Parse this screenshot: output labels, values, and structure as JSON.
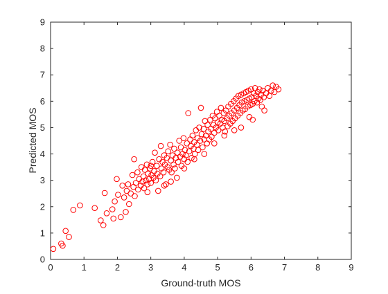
{
  "chart_data": {
    "type": "scatter",
    "xlabel": "Ground-truth MOS",
    "ylabel": "Predicted MOS",
    "xlim": [
      0,
      9
    ],
    "ylim": [
      0,
      9
    ],
    "x_ticks": [
      "0",
      "1",
      "2",
      "3",
      "4",
      "5",
      "6",
      "7",
      "8",
      "9"
    ],
    "y_ticks": [
      "0",
      "1",
      "2",
      "3",
      "4",
      "5",
      "6",
      "7",
      "8",
      "9"
    ],
    "grid": false,
    "box": true,
    "marker": "circle",
    "marker_color": "#ff0000",
    "series": [
      {
        "points": [
          [
            0.08,
            0.4
          ],
          [
            0.32,
            0.6
          ],
          [
            0.36,
            0.52
          ],
          [
            0.45,
            1.08
          ],
          [
            0.55,
            0.85
          ],
          [
            0.68,
            1.88
          ],
          [
            0.88,
            2.05
          ],
          [
            1.32,
            1.95
          ],
          [
            1.5,
            1.48
          ],
          [
            1.58,
            1.3
          ],
          [
            1.62,
            2.52
          ],
          [
            1.68,
            1.75
          ],
          [
            1.85,
            1.9
          ],
          [
            1.88,
            1.55
          ],
          [
            1.92,
            2.2
          ],
          [
            1.98,
            3.05
          ],
          [
            2.02,
            2.45
          ],
          [
            2.1,
            1.6
          ],
          [
            2.15,
            2.8
          ],
          [
            2.2,
            2.35
          ],
          [
            2.25,
            1.8
          ],
          [
            2.28,
            2.6
          ],
          [
            2.32,
            2.85
          ],
          [
            2.35,
            2.1
          ],
          [
            2.4,
            2.5
          ],
          [
            2.45,
            3.2
          ],
          [
            2.48,
            2.75
          ],
          [
            2.5,
            3.8
          ],
          [
            2.52,
            2.4
          ],
          [
            2.55,
            2.9
          ],
          [
            2.6,
            3.3
          ],
          [
            2.62,
            2.65
          ],
          [
            2.65,
            3.05
          ],
          [
            2.7,
            2.8
          ],
          [
            2.72,
            3.5
          ],
          [
            2.75,
            2.95
          ],
          [
            2.78,
            3.15
          ],
          [
            2.8,
            2.7
          ],
          [
            2.82,
            3.4
          ],
          [
            2.85,
            3.0
          ],
          [
            2.88,
            3.6
          ],
          [
            2.9,
            2.85
          ],
          [
            2.92,
            3.25
          ],
          [
            2.95,
            3.05
          ],
          [
            2.98,
            3.45
          ],
          [
            3.0,
            2.9
          ],
          [
            3.02,
            3.2
          ],
          [
            3.05,
            3.7
          ],
          [
            3.08,
            3.1
          ],
          [
            3.1,
            3.35
          ],
          [
            3.12,
            4.05
          ],
          [
            3.15,
            3.0
          ],
          [
            3.18,
            3.55
          ],
          [
            3.2,
            3.25
          ],
          [
            3.22,
            2.6
          ],
          [
            3.25,
            3.8
          ],
          [
            3.28,
            3.15
          ],
          [
            3.3,
            4.3
          ],
          [
            3.32,
            3.45
          ],
          [
            3.35,
            3.7
          ],
          [
            3.38,
            3.3
          ],
          [
            3.4,
            3.95
          ],
          [
            3.42,
            3.6
          ],
          [
            3.45,
            2.85
          ],
          [
            3.48,
            3.85
          ],
          [
            3.5,
            3.5
          ],
          [
            3.52,
            4.1
          ],
          [
            3.55,
            3.4
          ],
          [
            3.58,
            4.35
          ],
          [
            3.6,
            3.75
          ],
          [
            3.62,
            3.3
          ],
          [
            3.65,
            3.95
          ],
          [
            3.68,
            3.6
          ],
          [
            3.7,
            4.2
          ],
          [
            3.72,
            3.45
          ],
          [
            3.75,
            3.85
          ],
          [
            3.78,
            3.1
          ],
          [
            3.8,
            4.05
          ],
          [
            3.82,
            3.7
          ],
          [
            3.85,
            4.5
          ],
          [
            3.88,
            3.9
          ],
          [
            3.9,
            4.25
          ],
          [
            3.92,
            3.55
          ],
          [
            3.95,
            4.0
          ],
          [
            3.98,
            4.6
          ],
          [
            4.0,
            3.8
          ],
          [
            4.02,
            4.15
          ],
          [
            4.05,
            3.95
          ],
          [
            4.08,
            4.4
          ],
          [
            4.1,
            3.7
          ],
          [
            4.12,
            5.55
          ],
          [
            4.15,
            4.1
          ],
          [
            4.18,
            4.55
          ],
          [
            4.2,
            4.3
          ],
          [
            4.22,
            3.85
          ],
          [
            4.25,
            4.7
          ],
          [
            4.28,
            4.2
          ],
          [
            4.3,
            4.45
          ],
          [
            4.32,
            4.0
          ],
          [
            4.35,
            4.9
          ],
          [
            4.38,
            4.35
          ],
          [
            4.4,
            4.6
          ],
          [
            4.42,
            4.15
          ],
          [
            4.45,
            5.0
          ],
          [
            4.48,
            4.5
          ],
          [
            4.5,
            5.75
          ],
          [
            4.52,
            4.75
          ],
          [
            4.55,
            4.25
          ],
          [
            4.58,
            4.95
          ],
          [
            4.6,
            4.55
          ],
          [
            4.62,
            5.25
          ],
          [
            4.65,
            4.7
          ],
          [
            4.68,
            4.4
          ],
          [
            4.7,
            5.1
          ],
          [
            4.72,
            4.85
          ],
          [
            4.75,
            4.55
          ],
          [
            4.78,
            5.3
          ],
          [
            4.8,
            4.95
          ],
          [
            4.82,
            4.65
          ],
          [
            4.85,
            5.45
          ],
          [
            4.88,
            5.1
          ],
          [
            4.9,
            4.8
          ],
          [
            4.92,
            5.35
          ],
          [
            4.95,
            5.0
          ],
          [
            4.98,
            5.6
          ],
          [
            5.0,
            5.2
          ],
          [
            5.02,
            4.9
          ],
          [
            5.05,
            5.45
          ],
          [
            5.08,
            5.15
          ],
          [
            5.1,
            5.75
          ],
          [
            5.12,
            5.3
          ],
          [
            5.15,
            5.0
          ],
          [
            5.18,
            5.55
          ],
          [
            5.2,
            5.25
          ],
          [
            5.22,
            4.85
          ],
          [
            5.25,
            5.65
          ],
          [
            5.28,
            5.35
          ],
          [
            5.3,
            5.05
          ],
          [
            5.32,
            5.8
          ],
          [
            5.35,
            5.45
          ],
          [
            5.38,
            5.15
          ],
          [
            5.4,
            5.9
          ],
          [
            5.42,
            5.55
          ],
          [
            5.45,
            5.25
          ],
          [
            5.48,
            6.0
          ],
          [
            5.5,
            5.65
          ],
          [
            5.52,
            5.35
          ],
          [
            5.55,
            6.1
          ],
          [
            5.58,
            5.75
          ],
          [
            5.6,
            5.45
          ],
          [
            5.62,
            6.2
          ],
          [
            5.65,
            5.85
          ],
          [
            5.68,
            5.55
          ],
          [
            5.7,
            6.25
          ],
          [
            5.72,
            5.95
          ],
          [
            5.75,
            5.65
          ],
          [
            5.78,
            6.3
          ],
          [
            5.8,
            6.0
          ],
          [
            5.82,
            5.7
          ],
          [
            5.85,
            6.35
          ],
          [
            5.88,
            6.05
          ],
          [
            5.9,
            5.8
          ],
          [
            5.92,
            6.4
          ],
          [
            5.95,
            6.1
          ],
          [
            5.98,
            5.85
          ],
          [
            6.0,
            6.45
          ],
          [
            6.02,
            6.15
          ],
          [
            6.05,
            5.9
          ],
          [
            6.08,
            6.3
          ],
          [
            6.1,
            6.0
          ],
          [
            6.12,
            6.5
          ],
          [
            6.15,
            6.2
          ],
          [
            6.18,
            5.95
          ],
          [
            6.2,
            6.35
          ],
          [
            6.22,
            6.1
          ],
          [
            6.25,
            6.45
          ],
          [
            6.28,
            6.05
          ],
          [
            6.3,
            6.25
          ],
          [
            6.32,
            5.8
          ],
          [
            6.35,
            6.4
          ],
          [
            6.38,
            6.15
          ],
          [
            6.4,
            5.65
          ],
          [
            6.45,
            6.3
          ],
          [
            6.5,
            6.5
          ],
          [
            6.55,
            6.2
          ],
          [
            6.6,
            6.4
          ],
          [
            6.65,
            6.6
          ],
          [
            6.7,
            6.35
          ],
          [
            6.75,
            6.55
          ],
          [
            6.82,
            6.45
          ],
          [
            5.5,
            4.9
          ],
          [
            5.2,
            4.7
          ],
          [
            4.3,
            3.8
          ],
          [
            3.6,
            2.95
          ],
          [
            2.9,
            2.55
          ],
          [
            3.0,
            3.55
          ],
          [
            5.95,
            5.4
          ],
          [
            6.05,
            5.3
          ],
          [
            5.7,
            5.0
          ],
          [
            4.9,
            4.4
          ],
          [
            4.6,
            4.0
          ],
          [
            4.0,
            3.45
          ],
          [
            3.4,
            2.8
          ]
        ]
      }
    ]
  }
}
